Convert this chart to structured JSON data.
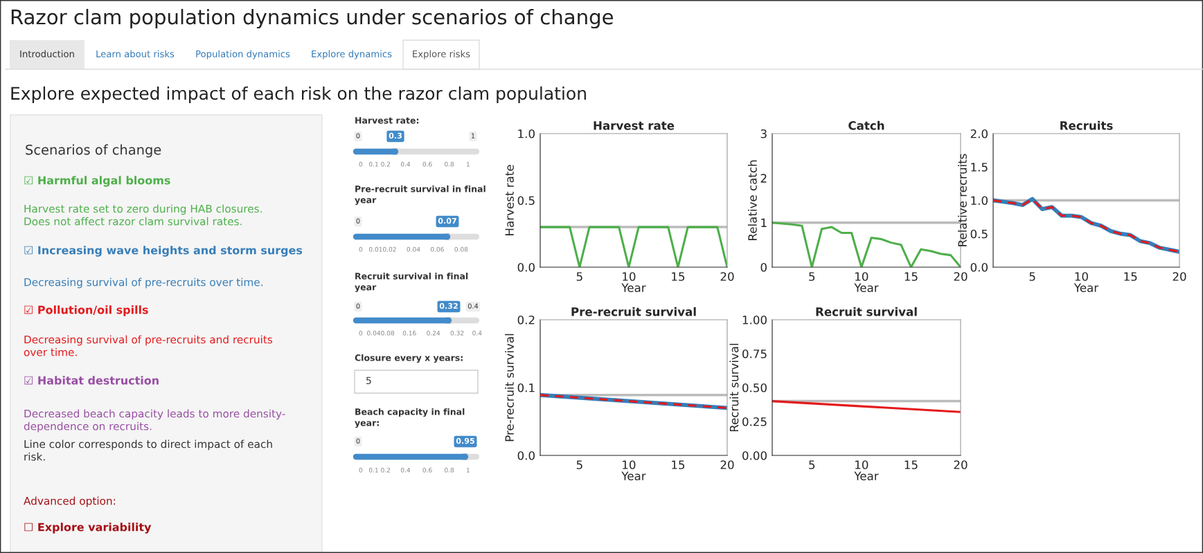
{
  "chart_data": [
    {
      "type": "other",
      "title": "Razor clam population dynamics under scenarios of change",
      "subtitle": "Explore expected impact of each risk on the razor clam population",
      "annotations": [
        "Introduction",
        "Learn about risks",
        "Population dynamics",
        "Explore dynamics",
        "Explore risks"
      ],
      "colors": [
        "#333333",
        "#337ab7",
        "#337ab7",
        "#337ab7",
        "#555555"
      ]
    },
    {
      "type": "other",
      "title": "Scenarios of change",
      "annotations": [
        "☑ Harmful algal blooms",
        "Harvest rate set to zero during HAB closures.\nDoes not affect razor clam survival rates.",
        "☑ Increasing wave heights and storm surges",
        "Decreasing survival of pre-recruits over time.",
        "☑ Pollution/oil spills",
        "Decreasing survival of pre-recruits and recruits\nover time.",
        "☑ Habitat destruction",
        "Decreased beach capacity leads to more density-\ndependence on recruits.",
        "Line color corresponds to direct impact of each\nrisk.",
        "Advanced option:",
        "☐ Explore variability"
      ],
      "colors": [
        "#4daf4a",
        "#4daf4a",
        "#377eb8",
        "#377eb8",
        "#e41a1c",
        "#e41a1c",
        "#984ea3",
        "#984ea3",
        "#333333",
        "#a50f15",
        "#a50f15"
      ]
    },
    {
      "type": "other",
      "annotations": [
        "Harvest rate:",
        "0",
        "0.3",
        "1",
        "0   0.1 0.2     0.4      0.6      0.8      1",
        "Pre-recruit survival in final\nyear",
        "0",
        "0.07",
        "0   0.010.02     0.04     0.06     0.08",
        "Recruit survival in final\nyear",
        "0",
        "0.32",
        "0.4",
        "0  0.040.08    0.16     0.24     0.32    0.4",
        "Closure every x years:",
        "5",
        "Beach capacity in final\nyear:",
        "0",
        "0.95",
        "0   0.1 0.2     0.4      0.6      0.8      1"
      ]
    },
    {
      "type": "line",
      "title": "Harvest rate",
      "xlabel": "Year",
      "ylabel": "Harvest rate",
      "x": [
        1,
        2,
        3,
        4,
        5,
        6,
        7,
        8,
        9,
        10,
        11,
        12,
        13,
        14,
        15,
        16,
        17,
        18,
        19,
        20
      ],
      "xlim": [
        1,
        20
      ],
      "xticks": [
        5,
        10,
        15,
        20
      ],
      "ylim": [
        0,
        1
      ],
      "yticks": [
        {
          "value": 0,
          "label": "0.0"
        },
        {
          "value": 0.5,
          "label": "0.5"
        },
        {
          "value": 1,
          "label": "1.0"
        }
      ],
      "ref_lines": [
        {
          "axis": "y",
          "value": 0.3,
          "color": "#bbbbbb"
        }
      ],
      "series": [
        {
          "color": "#4daf4a",
          "line_style": "solid",
          "values": [
            0.3,
            0.3,
            0.3,
            0.3,
            0,
            0.3,
            0.3,
            0.3,
            0.3,
            0,
            0.3,
            0.3,
            0.3,
            0.3,
            0,
            0.3,
            0.3,
            0.3,
            0.3,
            0
          ]
        }
      ]
    },
    {
      "type": "line",
      "title": "Catch",
      "xlabel": "Year",
      "ylabel": "Relative catch",
      "x": [
        1,
        2,
        3,
        4,
        5,
        6,
        7,
        8,
        9,
        10,
        11,
        12,
        13,
        14,
        15,
        16,
        17,
        18,
        19,
        20
      ],
      "xlim": [
        1,
        20
      ],
      "xticks": [
        5,
        10,
        15,
        20
      ],
      "ylim": [
        0,
        3
      ],
      "yticks": [
        0,
        1,
        2,
        3
      ],
      "ref_lines": [
        {
          "axis": "y",
          "value": 1,
          "color": "#bbbbbb"
        }
      ],
      "series": [
        {
          "color": "#4daf4a",
          "line_style": "solid",
          "values": [
            1.0,
            0.98,
            0.96,
            0.93,
            0,
            0.86,
            0.9,
            0.77,
            0.77,
            0,
            0.66,
            0.63,
            0.55,
            0.5,
            0,
            0.4,
            0.36,
            0.3,
            0.27,
            0
          ]
        }
      ]
    },
    {
      "type": "line",
      "title": "Recruits",
      "xlabel": "Year",
      "ylabel": "Relative recruits",
      "x": [
        1,
        2,
        3,
        4,
        5,
        6,
        7,
        8,
        9,
        10,
        11,
        12,
        13,
        14,
        15,
        16,
        17,
        18,
        19,
        20
      ],
      "xlim": [
        1,
        20
      ],
      "xticks": [
        5,
        10,
        15,
        20
      ],
      "ylim": [
        0,
        2
      ],
      "yticks": [
        {
          "value": 0,
          "label": "0.0"
        },
        {
          "value": 0.5,
          "label": "0.5"
        },
        {
          "value": 1,
          "label": "1.0"
        },
        {
          "value": 1.5,
          "label": "1.5"
        },
        {
          "value": 2,
          "label": "2.0"
        }
      ],
      "ref_lines": [
        {
          "axis": "y",
          "value": 1,
          "color": "#bbbbbb"
        }
      ],
      "series": [
        {
          "color": "#377eb8",
          "line_style": "solid",
          "values": [
            1.0,
            0.98,
            0.96,
            0.93,
            1.02,
            0.87,
            0.9,
            0.77,
            0.77,
            0.75,
            0.66,
            0.62,
            0.54,
            0.5,
            0.48,
            0.39,
            0.36,
            0.29,
            0.26,
            0.23
          ]
        },
        {
          "color": "#e41a1c",
          "line_style": "dashed",
          "values": [
            1.0,
            0.98,
            0.96,
            0.93,
            1.02,
            0.87,
            0.9,
            0.77,
            0.77,
            0.75,
            0.66,
            0.62,
            0.54,
            0.5,
            0.48,
            0.39,
            0.36,
            0.29,
            0.26,
            0.23
          ]
        }
      ]
    },
    {
      "type": "line",
      "title": "Pre-recruit survival",
      "xlabel": "Year",
      "ylabel": "Pre-recruit survival",
      "x": [
        1,
        20
      ],
      "xlim": [
        1,
        20
      ],
      "xticks": [
        5,
        10,
        15,
        20
      ],
      "ylim": [
        0,
        0.2
      ],
      "yticks": [
        {
          "value": 0,
          "label": "0.0"
        },
        {
          "value": 0.1,
          "label": "0.1"
        },
        {
          "value": 0.2,
          "label": "0.2"
        }
      ],
      "ref_lines": [
        {
          "axis": "y",
          "value": 0.089,
          "color": "#bbbbbb"
        }
      ],
      "series": [
        {
          "color": "#377eb8",
          "line_style": "solid",
          "values": [
            0.089,
            0.07
          ]
        },
        {
          "color": "#e41a1c",
          "line_style": "dashed",
          "values": [
            0.089,
            0.07
          ]
        }
      ]
    },
    {
      "type": "line",
      "title": "Recruit survival",
      "xlabel": "Year",
      "ylabel": "Recruit survival",
      "x": [
        1,
        20
      ],
      "xlim": [
        1,
        20
      ],
      "xticks": [
        5,
        10,
        15,
        20
      ],
      "ylim": [
        0,
        1
      ],
      "yticks": [
        {
          "value": 0,
          "label": "0.00"
        },
        {
          "value": 0.25,
          "label": "0.25"
        },
        {
          "value": 0.5,
          "label": "0.50"
        },
        {
          "value": 0.75,
          "label": "0.75"
        },
        {
          "value": 1,
          "label": "1.00"
        }
      ],
      "ref_lines": [
        {
          "axis": "y",
          "value": 0.4,
          "color": "#bbbbbb"
        }
      ],
      "series": [
        {
          "color": "#e41a1c",
          "line_style": "solid",
          "values": [
            0.4,
            0.32
          ]
        }
      ]
    }
  ]
}
